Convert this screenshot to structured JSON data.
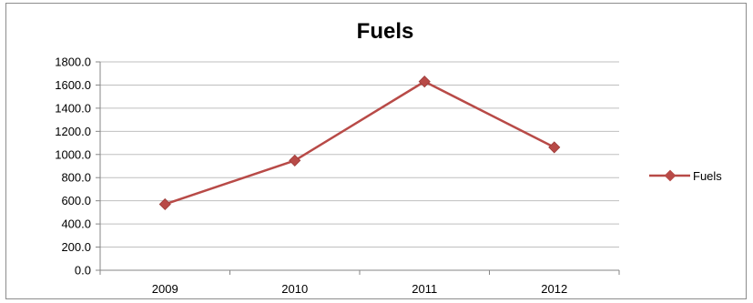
{
  "chart_data": {
    "type": "line",
    "title": "Fuels",
    "xlabel": "",
    "ylabel": "",
    "categories": [
      "2009",
      "2010",
      "2011",
      "2012"
    ],
    "series": [
      {
        "name": "Fuels",
        "values": [
          570,
          948,
          1630,
          1062
        ]
      }
    ],
    "ylim": [
      0,
      1800
    ],
    "y_ticks": [
      0,
      200,
      400,
      600,
      800,
      1000,
      1200,
      1400,
      1600,
      1800
    ],
    "y_tick_labels": [
      "0.0",
      "200.0",
      "400.0",
      "600.0",
      "800.0",
      "1000.0",
      "1200.0",
      "1400.0",
      "1600.0",
      "1800.0"
    ],
    "grid": true,
    "legend_position": "right",
    "colors": {
      "line": "#b84a47",
      "marker": "#b84a47",
      "grid": "#bfbfbf",
      "axis": "#868686"
    }
  }
}
